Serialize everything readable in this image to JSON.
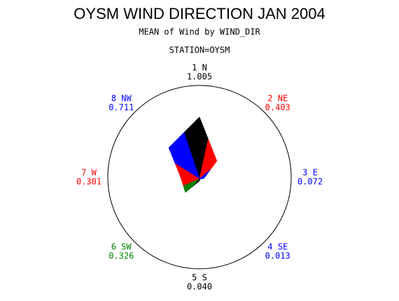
{
  "chart_data": {
    "type": "star",
    "title": "OYSM WIND DIRECTION JAN 2004",
    "subtitle": "MEAN of Wind by WIND_DIR",
    "group_label": "STATION=OYSM",
    "categories": [
      "1 N",
      "2 NE",
      "3 E",
      "4 SE",
      "5 S",
      "6 SW",
      "7 W",
      "8 NW"
    ],
    "values": [
      1.005,
      0.403,
      0.072,
      0.013,
      0.04,
      0.326,
      0.301,
      0.711
    ],
    "value_labels": [
      "1.005",
      "0.403",
      "0.072",
      "0.013",
      "0.040",
      "0.326",
      "0.301",
      "0.711"
    ],
    "colors": [
      "#000000",
      "#ff0000",
      "#0000ff",
      "#0000ff",
      "#000000",
      "#008000",
      "#ff0000",
      "#0000ff"
    ]
  }
}
